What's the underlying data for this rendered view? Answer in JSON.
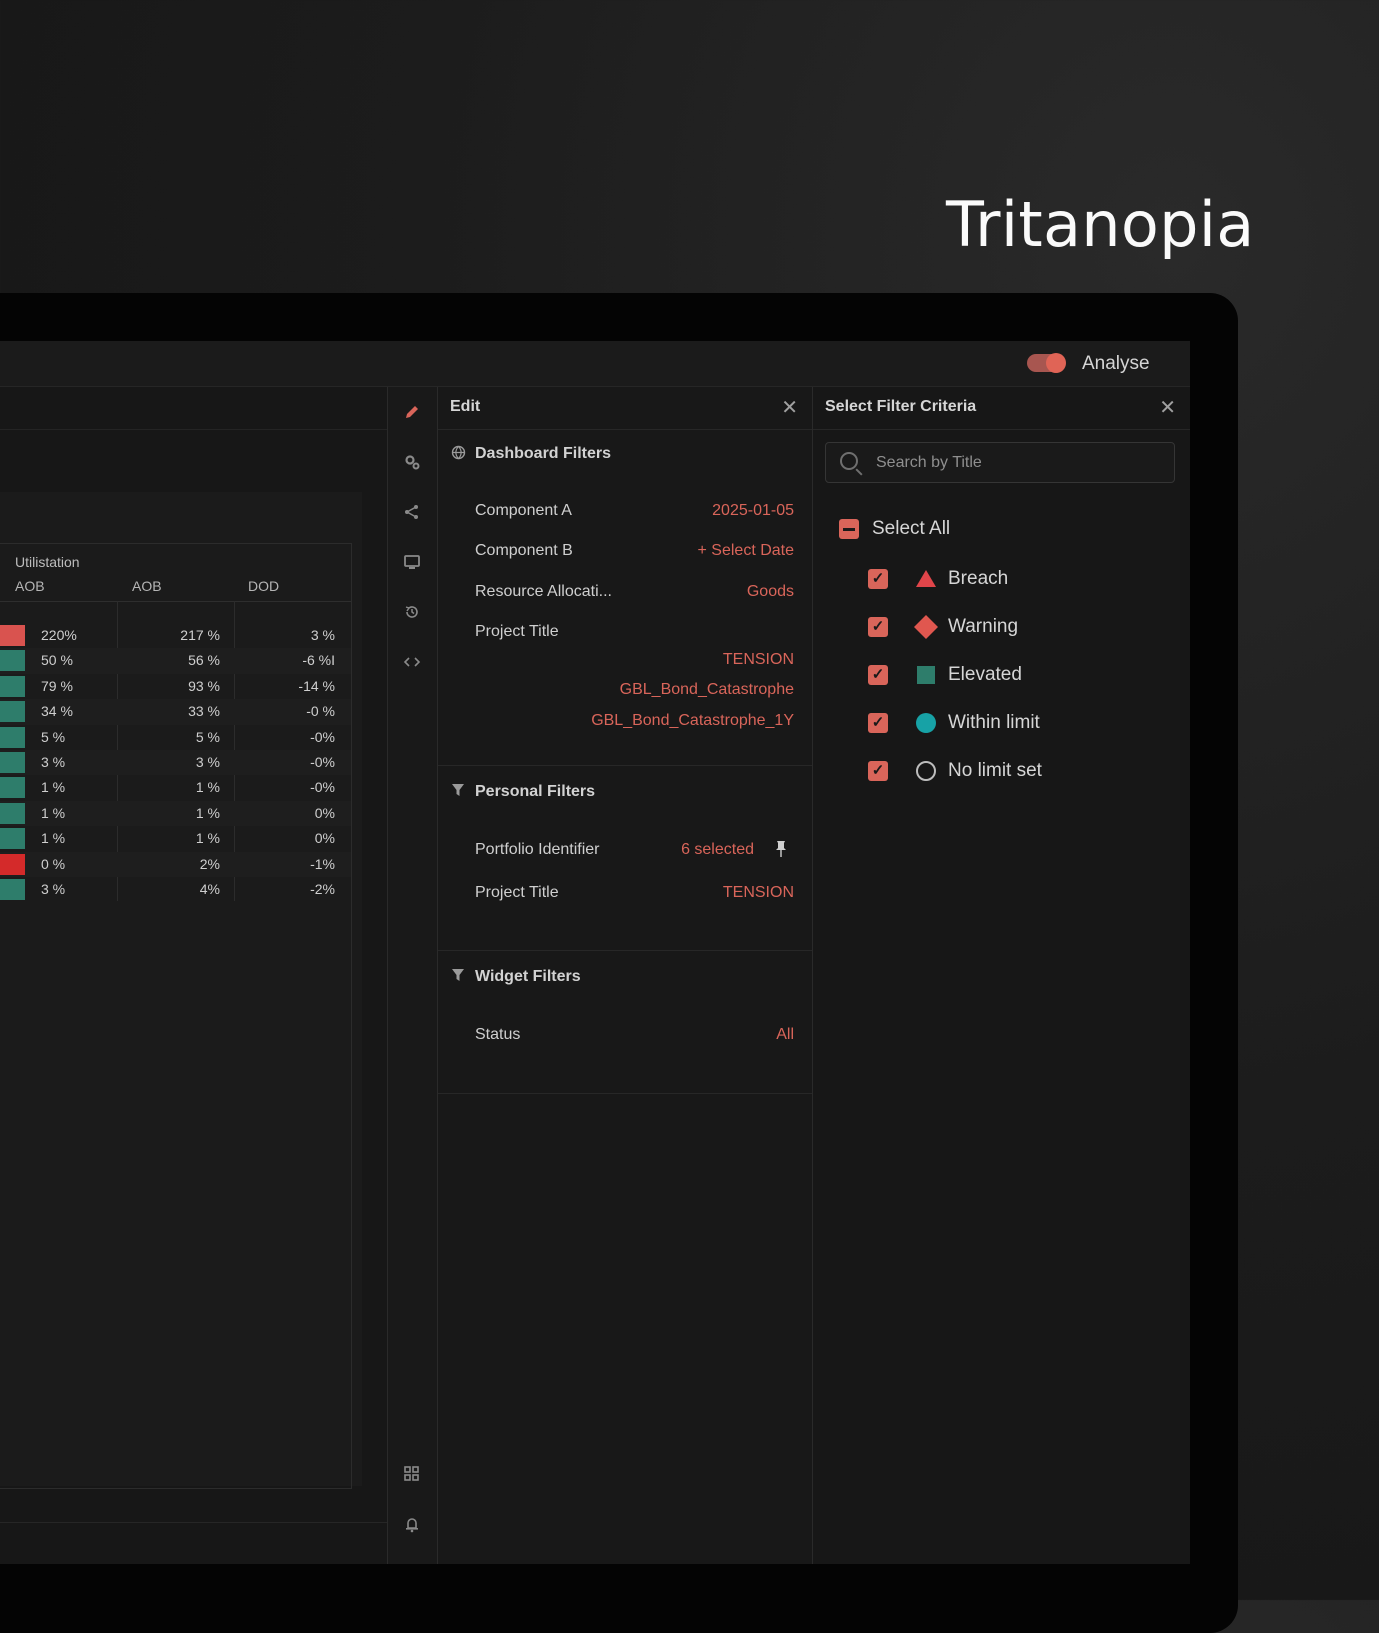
{
  "hero": {
    "title": "Tritanopia"
  },
  "topbar": {
    "analyse_label": "Analyse",
    "analyse_on": true
  },
  "table": {
    "group_header": "Utilistation",
    "columns": [
      "AOB",
      "AOB",
      "DOD"
    ],
    "rows": [
      {
        "status": "#d9534f",
        "c1": "220%",
        "c2": "217 %",
        "c3": "3 %"
      },
      {
        "status": "#2e7d6b",
        "c1": "50 %",
        "c2": "56 %",
        "c3": "-6 %I"
      },
      {
        "status": "#2e7d6b",
        "c1": "79 %",
        "c2": "93 %",
        "c3": "-14 %"
      },
      {
        "status": "#2e7d6b",
        "c1": "34 %",
        "c2": "33 %",
        "c3": "-0 %"
      },
      {
        "status": "#2e7d6b",
        "c1": "5 %",
        "c2": "5 %",
        "c3": "-0%"
      },
      {
        "status": "#2e7d6b",
        "c1": "3 %",
        "c2": "3 %",
        "c3": "-0%"
      },
      {
        "status": "#2e7d6b",
        "c1": "1 %",
        "c2": "1 %",
        "c3": "-0%"
      },
      {
        "status": "#2e7d6b",
        "c1": "1 %",
        "c2": "1 %",
        "c3": "0%"
      },
      {
        "status": "#2e7d6b",
        "c1": "1 %",
        "c2": "1 %",
        "c3": "0%"
      },
      {
        "status": "#d42a2a",
        "c1": "0 %",
        "c2": "2%",
        "c3": "-1%"
      },
      {
        "status": "#2e7d6b",
        "c1": "3 %",
        "c2": "4%",
        "c3": "-2%"
      }
    ]
  },
  "rail": {
    "icons": [
      "pencil-icon",
      "gears-icon",
      "share-icon",
      "monitor-icon",
      "history-icon",
      "code-icon",
      "grid-icon",
      "bell-icon"
    ]
  },
  "edit_panel": {
    "title": "Edit",
    "dashboard_filters": {
      "title": "Dashboard Filters",
      "component_a_label": "Component A",
      "component_a_value": "2025-01-05",
      "component_b_label": "Component B",
      "component_b_value": "+ Select Date",
      "resource_label": "Resource Allocati...",
      "resource_value": "Goods",
      "project_title_label": "Project Title",
      "project_values": [
        "TENSION",
        "GBL_Bond_Catastrophe",
        "GBL_Bond_Catastrophe_1Y"
      ]
    },
    "personal_filters": {
      "title": "Personal Filters",
      "portfolio_label": "Portfolio Identifier",
      "portfolio_value": "6 selected",
      "project_title_label": "Project Title",
      "project_title_value": "TENSION"
    },
    "widget_filters": {
      "title": "Widget Filters",
      "status_label": "Status",
      "status_value": "All"
    }
  },
  "criteria_panel": {
    "title": "Select Filter Criteria",
    "search_placeholder": "Search by Title",
    "select_all_label": "Select All",
    "options": [
      {
        "label": "Breach",
        "icon": "triangle-icon",
        "color": "#e0454a",
        "checked": true
      },
      {
        "label": "Warning",
        "icon": "diamond-icon",
        "color": "#e0574f",
        "checked": true
      },
      {
        "label": "Elevated",
        "icon": "square-icon",
        "color": "#2e7d6b",
        "checked": true
      },
      {
        "label": "Within limit",
        "icon": "circle-icon",
        "color": "#17a2a6",
        "checked": true
      },
      {
        "label": "No limit set",
        "icon": "ring-icon",
        "color": "#bdbdbd",
        "checked": true
      }
    ]
  }
}
